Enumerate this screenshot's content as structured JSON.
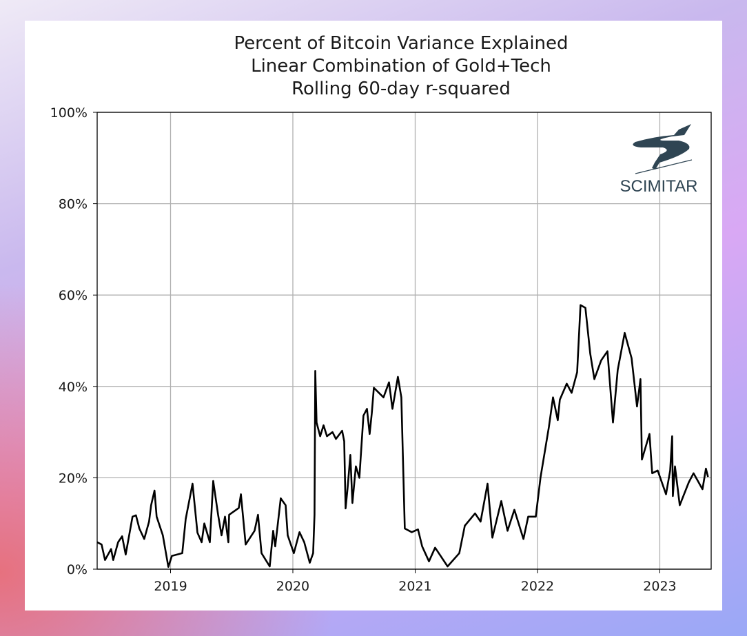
{
  "chart_data": {
    "type": "line",
    "title": [
      "Percent of Bitcoin Variance Explained",
      "Linear Combination of Gold+Tech",
      "Rolling 60-day r-squared"
    ],
    "xlabel": "",
    "ylabel": "",
    "xlim": [
      2018.4,
      2023.42
    ],
    "ylim": [
      0,
      100
    ],
    "grid": true,
    "x_ticks": [
      {
        "value": 2019,
        "label": "2019"
      },
      {
        "value": 2020,
        "label": "2020"
      },
      {
        "value": 2021,
        "label": "2021"
      },
      {
        "value": 2022,
        "label": "2022"
      },
      {
        "value": 2023,
        "label": "2023"
      }
    ],
    "y_ticks": [
      {
        "value": 0,
        "label": "0%"
      },
      {
        "value": 20,
        "label": "20%"
      },
      {
        "value": 40,
        "label": "40%"
      },
      {
        "value": 60,
        "label": "60%"
      },
      {
        "value": 80,
        "label": "80%"
      },
      {
        "value": 100,
        "label": "100%"
      }
    ],
    "series": [
      {
        "name": "r-squared",
        "color": "#000000",
        "x": [
          2018.4,
          2018.436,
          2018.464,
          2018.514,
          2018.531,
          2018.571,
          2018.604,
          2018.633,
          2018.689,
          2018.717,
          2018.745,
          2018.785,
          2018.824,
          2018.841,
          2018.869,
          2018.886,
          2018.937,
          2018.982,
          2019.011,
          2019.096,
          2019.124,
          2019.18,
          2019.22,
          2019.254,
          2019.276,
          2019.321,
          2019.349,
          2019.389,
          2019.417,
          2019.445,
          2019.473,
          2019.479,
          2019.558,
          2019.575,
          2019.614,
          2019.687,
          2019.715,
          2019.744,
          2019.811,
          2019.839,
          2019.856,
          2019.901,
          2019.941,
          2019.958,
          2020.008,
          2020.054,
          2020.093,
          2020.138,
          2020.166,
          2020.177,
          2020.183,
          2020.194,
          2020.223,
          2020.251,
          2020.279,
          2020.324,
          2020.352,
          2020.403,
          2020.42,
          2020.431,
          2020.448,
          2020.47,
          2020.487,
          2020.515,
          2020.544,
          2020.577,
          2020.606,
          2020.628,
          2020.645,
          2020.662,
          2020.741,
          2020.786,
          2020.814,
          2020.859,
          2020.887,
          2020.915,
          2020.972,
          2021.023,
          2021.057,
          2021.113,
          2021.163,
          2021.265,
          2021.361,
          2021.406,
          2021.49,
          2021.535,
          2021.592,
          2021.631,
          2021.704,
          2021.755,
          2021.811,
          2021.885,
          2021.924,
          2021.986,
          2022.025,
          2022.093,
          2022.127,
          2022.166,
          2022.183,
          2022.239,
          2022.279,
          2022.324,
          2022.352,
          2022.392,
          2022.431,
          2022.465,
          2022.521,
          2022.572,
          2022.617,
          2022.656,
          2022.713,
          2022.769,
          2022.814,
          2022.842,
          2022.854,
          2022.916,
          2022.938,
          2022.983,
          2023.051,
          2023.085,
          2023.101,
          2023.107,
          2023.124,
          2023.163,
          2023.237,
          2023.276,
          2023.349,
          2023.377,
          2023.394
        ],
        "y": [
          5.9,
          5.4,
          2,
          4.4,
          2,
          5.9,
          7.2,
          3.2,
          11.5,
          11.8,
          8.9,
          6.6,
          10.4,
          14,
          17.2,
          11.5,
          7.4,
          0.5,
          2.9,
          3.5,
          11,
          18.7,
          8,
          5.9,
          10,
          5.9,
          19.3,
          11.9,
          7.4,
          11.5,
          5.9,
          11.9,
          13.4,
          16.4,
          5.4,
          8.4,
          11.9,
          3.5,
          0.6,
          8.4,
          5,
          15.5,
          14,
          7.4,
          3.5,
          8.1,
          5.9,
          1.4,
          3.5,
          11.9,
          43.4,
          32.1,
          29.1,
          31.5,
          29.1,
          30,
          28.5,
          30.3,
          28,
          13.3,
          17.9,
          25,
          14.5,
          22.5,
          20,
          33.6,
          35.1,
          29.6,
          34.1,
          39.7,
          37.6,
          40.9,
          35.1,
          42.1,
          37.6,
          8.9,
          8.1,
          8.7,
          5,
          1.7,
          4.7,
          0.6,
          3.5,
          9.5,
          12.2,
          10.4,
          18.7,
          6.9,
          14.9,
          8.4,
          13,
          6.6,
          11.5,
          11.5,
          20.1,
          31.1,
          37.6,
          32.6,
          37.1,
          40.6,
          38.6,
          43.1,
          57.8,
          57.2,
          47.2,
          41.6,
          45.7,
          47.7,
          32.1,
          43.6,
          51.7,
          46.2,
          35.6,
          41.6,
          24,
          29.6,
          21,
          21.6,
          16.4,
          21.6,
          29.1,
          16,
          22.5,
          14,
          19,
          21,
          17.5,
          22,
          20.2
        ]
      }
    ],
    "annotations": [
      {
        "type": "logo",
        "text": "SCIMITAR",
        "placement": "top-right",
        "color": "#2f4553"
      }
    ]
  }
}
